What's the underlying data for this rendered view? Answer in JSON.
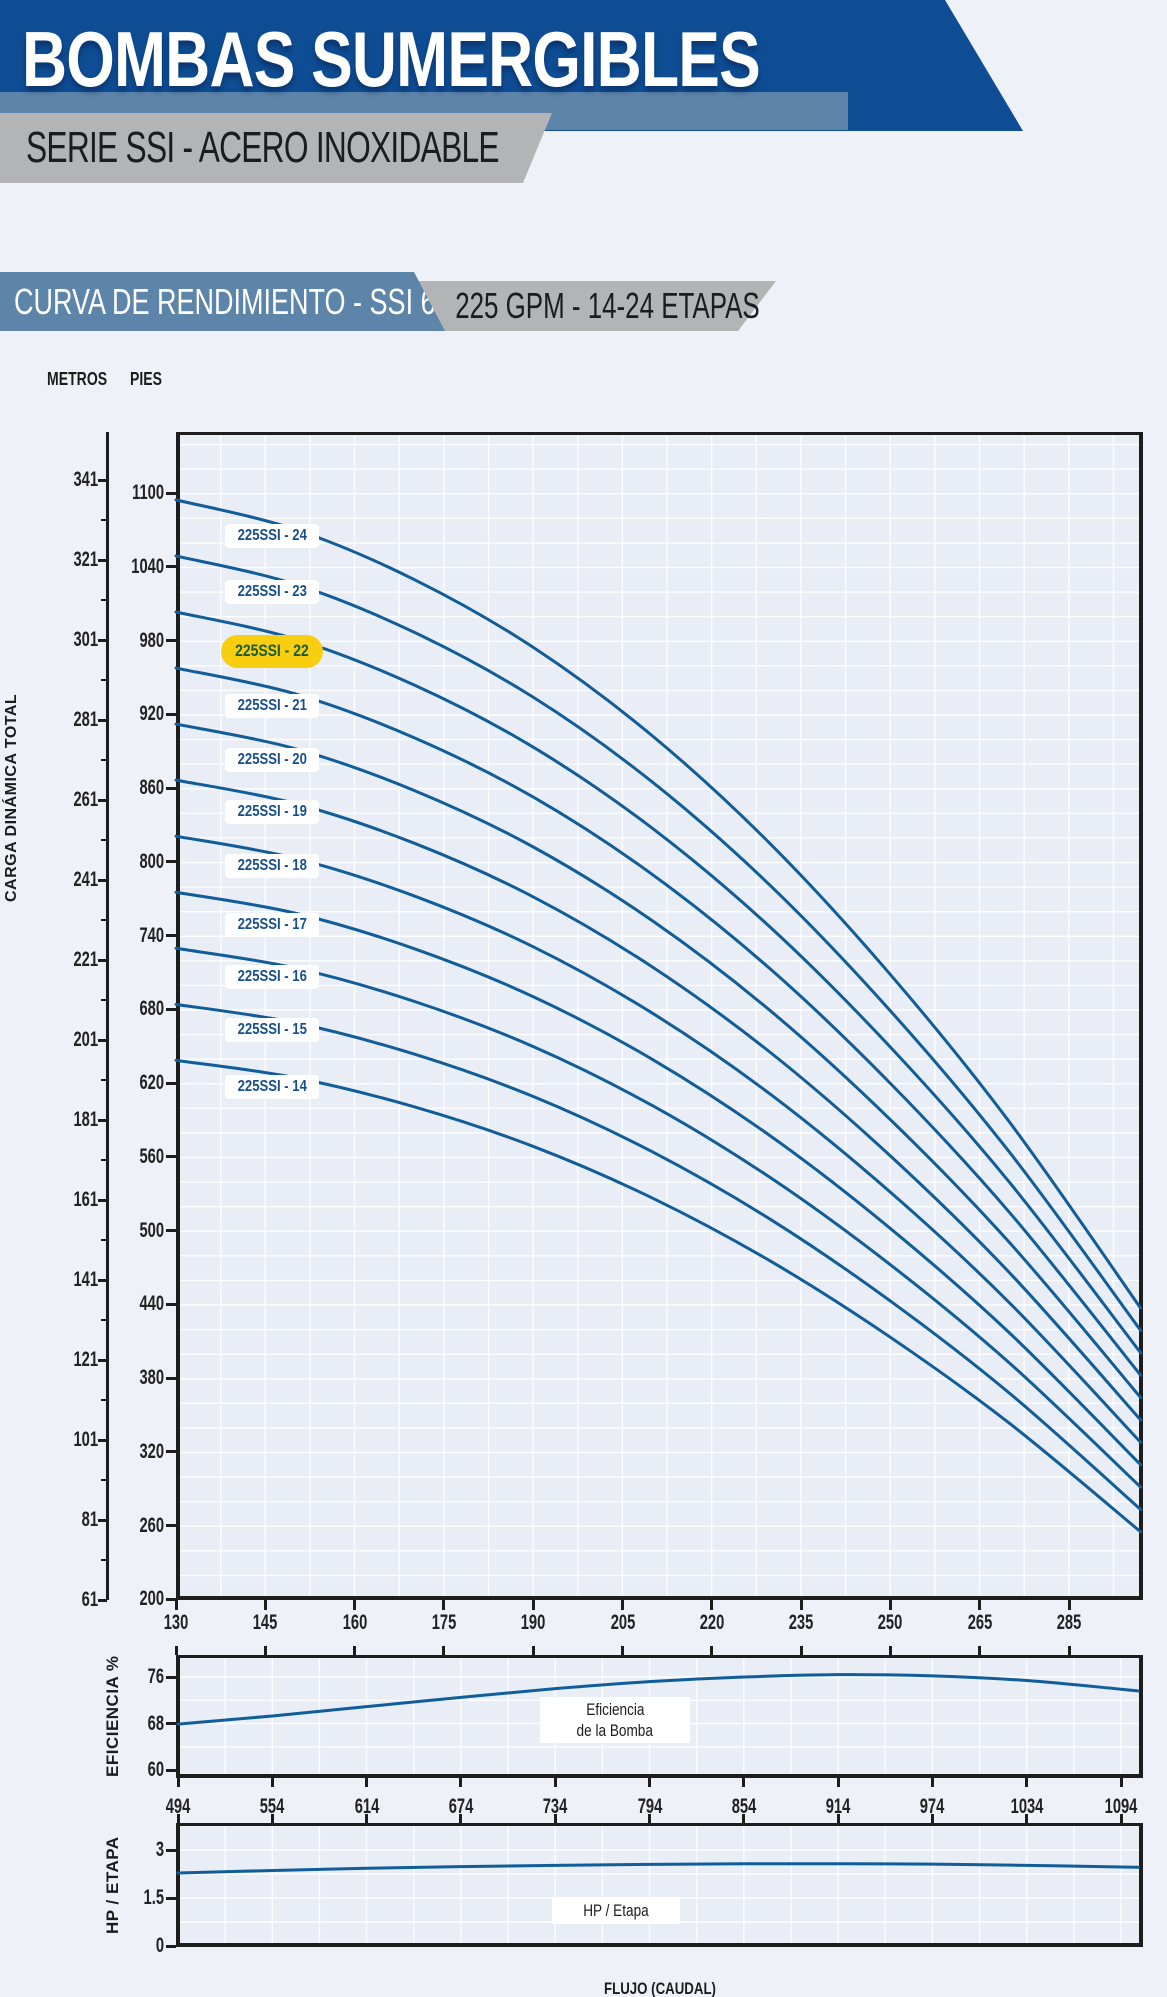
{
  "header": {
    "title": "BOMBAS SUMERGIBLES",
    "subtitle": "SERIE SSI - ACERO INOXIDABLE"
  },
  "banner": {
    "left": "CURVA DE RENDIMIENTO - SSI 6”",
    "right": "225 GPM - 14-24 ETAPAS"
  },
  "main_chart": {
    "metros_title": "METROS",
    "pies_title": "PIES",
    "y_axis_title": "CARGA DINÁMICA TOTAL"
  },
  "eff_chart": {
    "axis_label": "EFICIENCIA %",
    "box_line1": "Eficiencia",
    "box_line2": "de la Bomba"
  },
  "hp_chart": {
    "axis_label": "HP / ETAPA",
    "box_label": "HP / Etapa"
  },
  "footer": {
    "x_axis_title": "FLUJO (CAUDAL)"
  },
  "colors": {
    "curve": "#105d99",
    "header_blue": "#0e4d94",
    "band_slate": "#5d84a9",
    "band_gray": "#b2b4b5",
    "highlight_yellow": "#f7ce10",
    "highlight_text_green": "#1d5a2d",
    "label_navy": "#174e8e"
  },
  "chart_data": [
    {
      "type": "line",
      "title": "CURVA DE RENDIMIENTO - SSI 6” — 225 GPM - 14-24 ETAPAS",
      "xlabel": "FLUJO (CAUDAL) GPM",
      "ylabel": "CARGA DINÁMICA TOTAL (METROS / PIES)",
      "grid": true,
      "x_ticks_gpm": [
        130,
        145,
        160,
        175,
        190,
        205,
        220,
        235,
        250,
        265,
        285
      ],
      "y_ticks_metros": [
        341,
        321,
        301,
        281,
        261,
        241,
        221,
        201,
        181,
        161,
        141,
        121,
        101,
        81,
        61
      ],
      "y_ticks_pies": [
        1100,
        1040,
        980,
        920,
        860,
        800,
        740,
        680,
        620,
        560,
        500,
        440,
        380,
        320,
        260,
        200
      ],
      "y_range_pies": [
        200,
        1100
      ],
      "flow_gpm_samples": [
        130,
        150,
        170,
        190,
        210,
        230,
        250,
        270,
        292
      ],
      "head_pies_per_stage": [
        45.6,
        44.6,
        42.9,
        40.6,
        37.6,
        33.9,
        29.5,
        24.5,
        18.2
      ],
      "series": [
        {
          "name": "225SSI - 24",
          "stages": 24,
          "highlighted": false
        },
        {
          "name": "225SSI - 23",
          "stages": 23,
          "highlighted": false
        },
        {
          "name": "225SSI - 22",
          "stages": 22,
          "highlighted": true
        },
        {
          "name": "225SSI - 21",
          "stages": 21,
          "highlighted": false
        },
        {
          "name": "225SSI - 20",
          "stages": 20,
          "highlighted": false
        },
        {
          "name": "225SSI - 19",
          "stages": 19,
          "highlighted": false
        },
        {
          "name": "225SSI - 18",
          "stages": 18,
          "highlighted": false
        },
        {
          "name": "225SSI - 17",
          "stages": 17,
          "highlighted": false
        },
        {
          "name": "225SSI - 16",
          "stages": 16,
          "highlighted": false
        },
        {
          "name": "225SSI - 15",
          "stages": 15,
          "highlighted": false
        },
        {
          "name": "225SSI - 14",
          "stages": 14,
          "highlighted": false
        }
      ]
    },
    {
      "type": "line",
      "name": "Eficiencia de la Bomba",
      "ylabel": "EFICIENCIA %",
      "y_ticks": [
        "76",
        "68",
        "60"
      ],
      "ylim": [
        60,
        79.8
      ],
      "x_ticks_lpm": [
        494,
        554,
        614,
        674,
        734,
        794,
        854,
        914,
        974,
        1034,
        1094
      ],
      "x_lpm": [
        494,
        554,
        614,
        674,
        734,
        794,
        854,
        914,
        974,
        1034,
        1094,
        1105
      ],
      "values": [
        67.9,
        69.3,
        70.9,
        72.5,
        74.0,
        75.2,
        76.0,
        76.4,
        76.2,
        75.4,
        73.9,
        73.6
      ]
    },
    {
      "type": "line",
      "name": "HP / Etapa",
      "ylabel": "HP / ETAPA",
      "y_ticks": [
        "3",
        "1.5",
        "0"
      ],
      "ylim": [
        0,
        3.84
      ],
      "x_ticks_lpm": [
        494,
        554,
        614,
        674,
        734,
        794,
        854,
        914,
        974,
        1034,
        1094
      ],
      "x_lpm": [
        494,
        554,
        614,
        674,
        734,
        794,
        854,
        914,
        974,
        1034,
        1094,
        1105
      ],
      "values": [
        2.28,
        2.36,
        2.43,
        2.48,
        2.52,
        2.55,
        2.57,
        2.57,
        2.56,
        2.52,
        2.47,
        2.46
      ]
    }
  ]
}
